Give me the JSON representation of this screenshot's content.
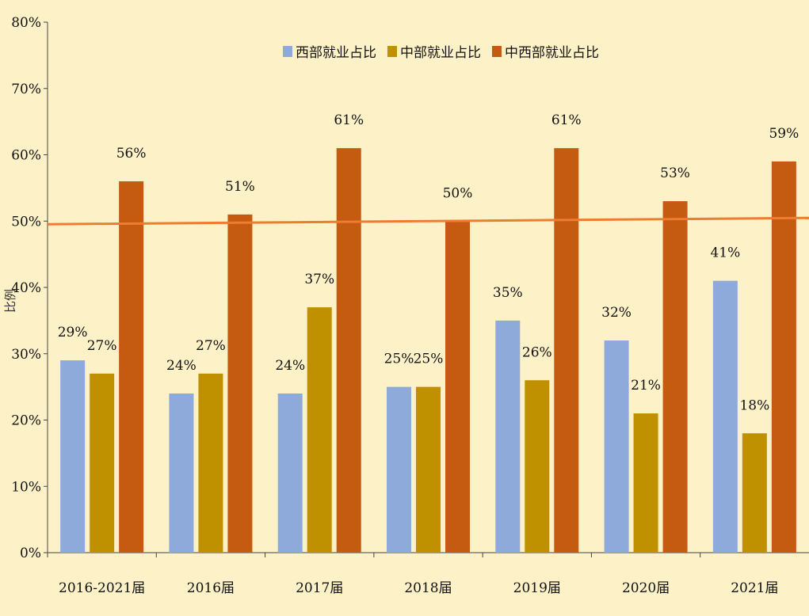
{
  "chart_data": {
    "type": "bar",
    "title": "",
    "xlabel": "",
    "ylabel": "比例",
    "ylim": [
      0,
      80
    ],
    "yticks": [
      "0%",
      "10%",
      "20%",
      "30%",
      "40%",
      "50%",
      "60%",
      "70%",
      "80%"
    ],
    "categories": [
      "2016-2021届",
      "2016届",
      "2017届",
      "2018届",
      "2019届",
      "2020届",
      "2021届"
    ],
    "series": [
      {
        "name": "西部就业占比",
        "color": "#8eaadb",
        "values": [
          29,
          24,
          24,
          25,
          35,
          32,
          41
        ],
        "labels": [
          "29%",
          "24%",
          "24%",
          "25%",
          "35%",
          "32%",
          "41%"
        ]
      },
      {
        "name": "中部就业占比",
        "color": "#bf9000",
        "values": [
          27,
          27,
          37,
          25,
          26,
          21,
          18
        ],
        "labels": [
          "27%",
          "27%",
          "37%",
          "25%",
          "26%",
          "21%",
          "18%"
        ]
      },
      {
        "name": "中西部就业占比",
        "color": "#c55a11",
        "values": [
          56,
          51,
          61,
          50,
          61,
          53,
          59
        ],
        "labels": [
          "56%",
          "51%",
          "61%",
          "50%",
          "61%",
          "53%",
          "59%"
        ]
      }
    ],
    "reference_line": {
      "value": 50,
      "color": "#ed7d31"
    },
    "legend_position": "top",
    "grid": false
  }
}
